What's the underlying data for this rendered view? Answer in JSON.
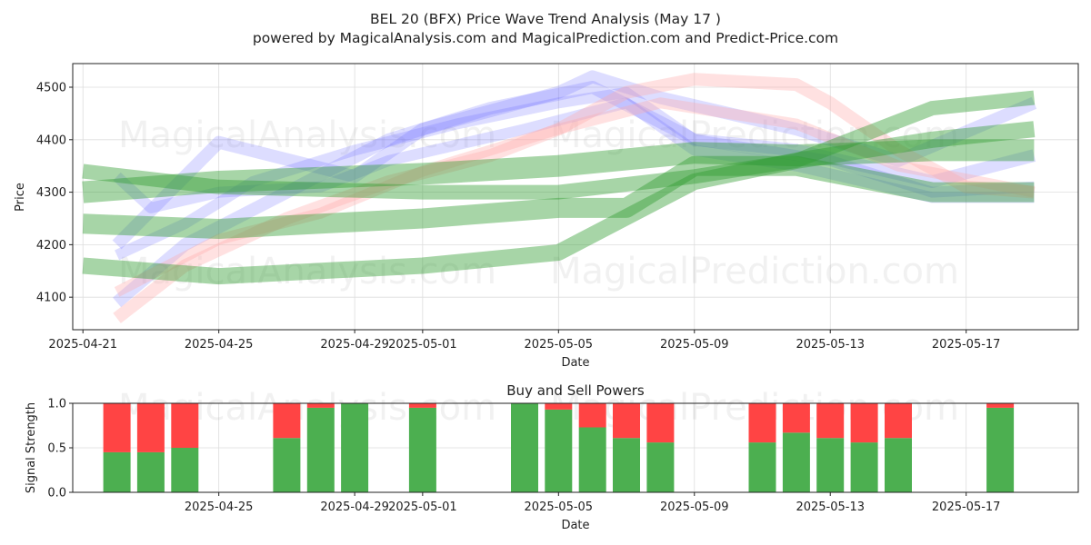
{
  "chart_data": [
    {
      "type": "line",
      "title": "BEL 20 (BFX) Price Wave Trend Analysis (May 17 )",
      "subtitle": "powered by MagicalAnalysis.com and MagicalPrediction.com and Predict-Price.com",
      "xlabel": "Date",
      "ylabel": "Price",
      "x_range": [
        "2025-04-21",
        "2025-05-20"
      ],
      "ylim": [
        4050,
        4550
      ],
      "grid": true,
      "x_ticks": [
        "2025-04-21",
        "2025-04-25",
        "2025-04-29",
        "2025-05-01",
        "2025-05-05",
        "2025-05-09",
        "2025-05-13",
        "2025-05-17"
      ],
      "y_ticks": [
        4100,
        4200,
        4300,
        4400,
        4500
      ],
      "colors": {
        "blue": "#6666ff",
        "pink": "#ffaaaa",
        "green": "#2e9a2e"
      },
      "watermarks": [
        "MagicalAnalysis.com",
        "MagicalPrediction.com"
      ],
      "series": [
        {
          "color": "blue",
          "band": 14,
          "x": [
            "2025-04-22",
            "2025-04-25",
            "2025-04-29",
            "2025-05-01",
            "2025-05-05",
            "2025-05-06",
            "2025-05-08",
            "2025-05-12",
            "2025-05-15",
            "2025-05-19"
          ],
          "y": [
            4200,
            4395,
            4330,
            4420,
            4490,
            4520,
            4480,
            4420,
            4360,
            4470
          ]
        },
        {
          "color": "blue",
          "band": 14,
          "x": [
            "2025-04-22",
            "2025-04-24",
            "2025-04-27",
            "2025-04-30",
            "2025-05-03",
            "2025-05-06",
            "2025-05-09",
            "2025-05-12",
            "2025-05-16",
            "2025-05-19"
          ],
          "y": [
            4090,
            4200,
            4300,
            4400,
            4460,
            4500,
            4400,
            4380,
            4320,
            4370
          ]
        },
        {
          "color": "blue",
          "band": 12,
          "x": [
            "2025-04-22",
            "2025-04-24",
            "2025-04-26",
            "2025-04-29",
            "2025-05-02",
            "2025-05-05",
            "2025-05-07",
            "2025-05-09",
            "2025-05-13",
            "2025-05-16",
            "2025-05-19"
          ],
          "y": [
            4180,
            4240,
            4320,
            4380,
            4430,
            4470,
            4490,
            4400,
            4360,
            4300,
            4310
          ]
        },
        {
          "color": "blue",
          "band": 12,
          "x": [
            "2025-04-22",
            "2025-04-23",
            "2025-04-25",
            "2025-04-28",
            "2025-04-30",
            "2025-05-04",
            "2025-05-07",
            "2025-05-09",
            "2025-05-12",
            "2025-05-16",
            "2025-05-19"
          ],
          "y": [
            4330,
            4270,
            4300,
            4310,
            4360,
            4420,
            4470,
            4380,
            4350,
            4290,
            4290
          ]
        },
        {
          "color": "pink",
          "band": 14,
          "x": [
            "2025-04-22",
            "2025-04-24",
            "2025-04-27",
            "2025-04-30",
            "2025-05-03",
            "2025-05-05",
            "2025-05-07",
            "2025-05-09",
            "2025-05-12",
            "2025-05-13",
            "2025-05-15",
            "2025-05-17",
            "2025-05-19"
          ],
          "y": [
            4060,
            4160,
            4250,
            4320,
            4370,
            4420,
            4490,
            4515,
            4505,
            4470,
            4380,
            4310,
            4300
          ]
        },
        {
          "color": "pink",
          "band": 12,
          "x": [
            "2025-04-22",
            "2025-04-25",
            "2025-04-28",
            "2025-05-01",
            "2025-05-05",
            "2025-05-08",
            "2025-05-12",
            "2025-05-15",
            "2025-05-19"
          ],
          "y": [
            4110,
            4210,
            4260,
            4340,
            4420,
            4470,
            4430,
            4350,
            4300
          ]
        },
        {
          "color": "green",
          "band": 24,
          "x": [
            "2025-04-21",
            "2025-04-25",
            "2025-05-01",
            "2025-05-05",
            "2025-05-09",
            "2025-05-12",
            "2025-05-16",
            "2025-05-19"
          ],
          "y": [
            4300,
            4320,
            4335,
            4350,
            4375,
            4370,
            4380,
            4380
          ]
        },
        {
          "color": "green",
          "band": 22,
          "x": [
            "2025-04-21",
            "2025-04-25",
            "2025-05-01",
            "2025-05-05",
            "2025-05-07",
            "2025-05-09",
            "2025-05-12",
            "2025-05-16",
            "2025-05-19"
          ],
          "y": [
            4240,
            4230,
            4250,
            4270,
            4270,
            4350,
            4350,
            4300,
            4300
          ]
        },
        {
          "color": "green",
          "band": 18,
          "x": [
            "2025-04-21",
            "2025-04-25",
            "2025-05-01",
            "2025-05-05",
            "2025-05-09",
            "2025-05-12",
            "2025-05-16",
            "2025-05-19"
          ],
          "y": [
            4160,
            4140,
            4160,
            4185,
            4320,
            4360,
            4400,
            4420
          ]
        },
        {
          "color": "green",
          "band": 16,
          "x": [
            "2025-04-21",
            "2025-04-25",
            "2025-05-01",
            "2025-05-05",
            "2025-05-09",
            "2025-05-12",
            "2025-05-16",
            "2025-05-19"
          ],
          "y": [
            4340,
            4310,
            4300,
            4300,
            4330,
            4360,
            4460,
            4480
          ]
        }
      ]
    },
    {
      "type": "bar",
      "title": "Buy and Sell Powers",
      "xlabel": "Date",
      "ylabel": "Signal Strength",
      "ylim": [
        0,
        1
      ],
      "x_range": [
        "2025-04-21",
        "2025-05-20"
      ],
      "x_ticks": [
        "2025-04-25",
        "2025-04-29",
        "2025-05-01",
        "2025-05-05",
        "2025-05-09",
        "2025-05-13",
        "2025-05-17"
      ],
      "y_ticks": [
        "0.0",
        "0.5",
        "1.0"
      ],
      "grid": true,
      "colors": {
        "buy": "#4caf50",
        "sell": "#ff4444"
      },
      "bars": [
        {
          "date": "2025-04-22",
          "buy": 0.45
        },
        {
          "date": "2025-04-23",
          "buy": 0.45
        },
        {
          "date": "2025-04-24",
          "buy": 0.5
        },
        {
          "date": "2025-04-27",
          "buy": 0.61
        },
        {
          "date": "2025-04-28",
          "buy": 0.95
        },
        {
          "date": "2025-04-29",
          "buy": 1.0
        },
        {
          "date": "2025-05-01",
          "buy": 0.95
        },
        {
          "date": "2025-05-04",
          "buy": 1.0
        },
        {
          "date": "2025-05-05",
          "buy": 0.93
        },
        {
          "date": "2025-05-06",
          "buy": 0.73
        },
        {
          "date": "2025-05-07",
          "buy": 0.61
        },
        {
          "date": "2025-05-08",
          "buy": 0.56
        },
        {
          "date": "2025-05-11",
          "buy": 0.56
        },
        {
          "date": "2025-05-12",
          "buy": 0.67
        },
        {
          "date": "2025-05-13",
          "buy": 0.61
        },
        {
          "date": "2025-05-14",
          "buy": 0.56
        },
        {
          "date": "2025-05-15",
          "buy": 0.61
        },
        {
          "date": "2025-05-18",
          "buy": 0.95
        }
      ]
    }
  ]
}
